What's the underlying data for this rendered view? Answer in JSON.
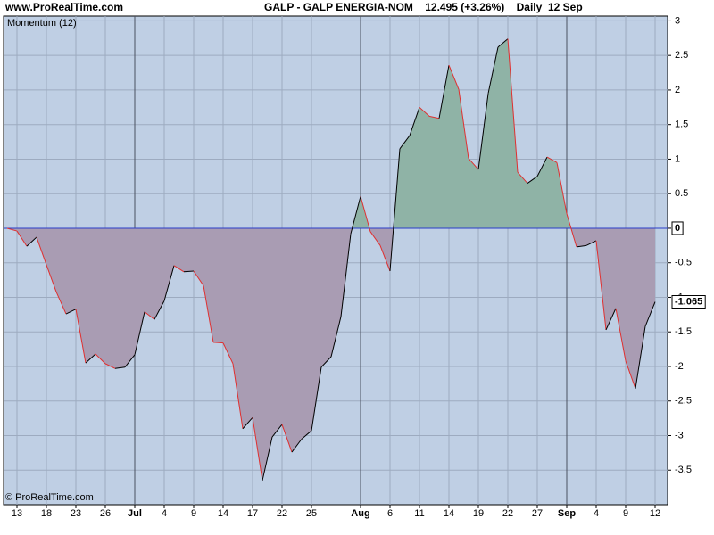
{
  "header": {
    "site": "www.ProRealTime.com",
    "title": "GALP - GALP ENERGIA-NOM    12.495 (+3.26%)    Daily  12 Sep"
  },
  "chart_data": {
    "type": "area",
    "indicator": "Momentum (12)",
    "footer": "© ProRealTime.com",
    "categories": [
      null,
      "13",
      null,
      null,
      "18",
      null,
      null,
      "23",
      null,
      null,
      "26",
      null,
      null,
      "Jul",
      null,
      null,
      "4",
      null,
      null,
      "9",
      null,
      null,
      "14",
      null,
      null,
      "17",
      null,
      null,
      "22",
      null,
      null,
      "25",
      null,
      null,
      null,
      null,
      "Aug",
      null,
      null,
      "6",
      null,
      null,
      "11",
      null,
      null,
      "14",
      null,
      null,
      "19",
      null,
      null,
      "22",
      null,
      null,
      "27",
      null,
      null,
      "Sep",
      null,
      null,
      "4",
      null,
      null,
      "9",
      null,
      null,
      "12"
    ],
    "month_starts": [
      "Jul",
      "Aug",
      "Sep"
    ],
    "values": [
      0,
      -0.04,
      -0.26,
      -0.13,
      -0.53,
      -0.92,
      -1.24,
      -1.17,
      -1.95,
      -1.82,
      -1.96,
      -2.03,
      -2.01,
      -1.83,
      -1.21,
      -1.32,
      -1.05,
      -0.54,
      -0.63,
      -0.62,
      -0.83,
      -1.65,
      -1.66,
      -1.96,
      -2.9,
      -2.74,
      -3.65,
      -3.02,
      -2.84,
      -3.24,
      -3.05,
      -2.93,
      -2.01,
      -1.86,
      -1.28,
      -0.08,
      0.46,
      -0.05,
      -0.25,
      -0.62,
      1.15,
      1.34,
      1.75,
      1.62,
      1.59,
      2.36,
      2.01,
      1.01,
      0.85,
      1.95,
      2.62,
      2.74,
      0.81,
      0.65,
      0.75,
      1.03,
      0.95,
      0.21,
      -0.27,
      -0.25,
      -0.18,
      -1.47,
      -1.16,
      -1.92,
      -2.32,
      -1.42,
      -1.065
    ],
    "reference_line": 0,
    "ylim": [
      -4.0,
      3.07
    ],
    "yticks": [
      3,
      2.5,
      2,
      1.5,
      1,
      0.5,
      0,
      -0.5,
      -1,
      -1.5,
      -2,
      -2.5,
      -3,
      -3.5
    ],
    "colors": {
      "background": "#bfcfe4",
      "grid": "#9dabc0",
      "month_line": "#4a5060",
      "positive_fill": "#8fb3a6",
      "negative_fill": "#a99cb3",
      "rising_line": "#000000",
      "falling_line": "#e03030",
      "reference_line": "#2a3cc8"
    },
    "grid": true
  }
}
